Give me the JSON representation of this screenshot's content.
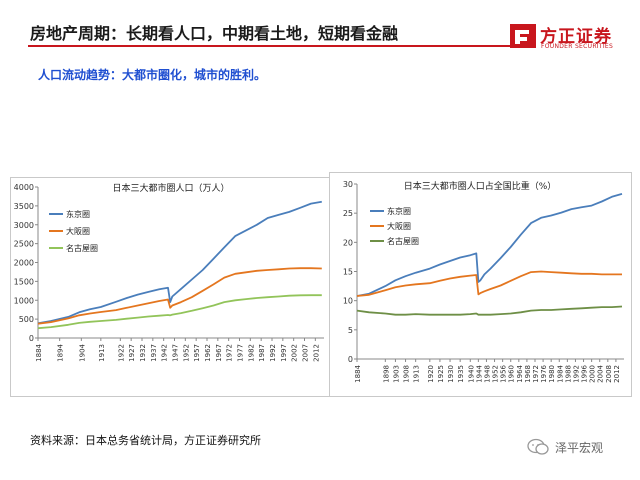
{
  "header": {
    "title": "房地产周期：长期看人口，中期看土地，短期看金融",
    "subtitle": "人口流动趋势：大都市圈化，城市的胜利。"
  },
  "logo": {
    "name_cn": "方正证券",
    "name_en": "FOUNDER SECURITIES",
    "color": "#c8161d"
  },
  "footer": {
    "source": "资料来源：日本总务省统计局，方正证券研究所",
    "wechat_name": "泽平宏观"
  },
  "chart_data": [
    {
      "type": "line",
      "title": "日本三大都市圈人口（万人）",
      "xlabel": "",
      "ylabel": "",
      "ylim": [
        0,
        4000
      ],
      "yticks": [
        0,
        500,
        1000,
        1500,
        2000,
        2500,
        3000,
        3500,
        4000
      ],
      "xlim": [
        1884,
        2016
      ],
      "xticks": [
        1884,
        1894,
        1904,
        1913,
        1922,
        1927,
        1932,
        1937,
        1942,
        1947,
        1952,
        1957,
        1962,
        1967,
        1972,
        1977,
        1982,
        1987,
        1992,
        1997,
        2002,
        2007,
        2012
      ],
      "grid": false,
      "legend": "top-left",
      "series": [
        {
          "name": "东京圈",
          "color": "#4a7ebb",
          "x": [
            1884,
            1890,
            1898,
            1903,
            1908,
            1913,
            1920,
            1925,
            1930,
            1935,
            1940,
            1944,
            1945,
            1946,
            1950,
            1955,
            1960,
            1965,
            1970,
            1975,
            1980,
            1985,
            1990,
            1995,
            2000,
            2005,
            2010,
            2015
          ],
          "y": [
            390,
            450,
            560,
            680,
            760,
            820,
            960,
            1060,
            1150,
            1220,
            1290,
            1330,
            950,
            1100,
            1300,
            1550,
            1800,
            2100,
            2400,
            2700,
            2850,
            3000,
            3180,
            3260,
            3340,
            3450,
            3560,
            3610
          ]
        },
        {
          "name": "大阪圈",
          "color": "#e4761f",
          "x": [
            1884,
            1890,
            1898,
            1903,
            1908,
            1913,
            1920,
            1925,
            1930,
            1935,
            1940,
            1944,
            1945,
            1946,
            1950,
            1955,
            1960,
            1965,
            1970,
            1975,
            1980,
            1985,
            1990,
            1995,
            2000,
            2005,
            2010,
            2015
          ],
          "y": [
            380,
            420,
            520,
            600,
            650,
            690,
            740,
            800,
            860,
            920,
            980,
            1020,
            800,
            860,
            950,
            1080,
            1250,
            1420,
            1600,
            1700,
            1740,
            1780,
            1800,
            1820,
            1840,
            1850,
            1850,
            1840
          ]
        },
        {
          "name": "名古屋圈",
          "color": "#92c45a",
          "x": [
            1884,
            1890,
            1898,
            1903,
            1908,
            1913,
            1920,
            1925,
            1930,
            1935,
            1940,
            1944,
            1945,
            1946,
            1950,
            1955,
            1960,
            1965,
            1970,
            1975,
            1980,
            1985,
            1990,
            1995,
            2000,
            2005,
            2010,
            2015
          ],
          "y": [
            260,
            290,
            350,
            400,
            430,
            450,
            480,
            510,
            540,
            570,
            590,
            610,
            600,
            620,
            660,
            720,
            790,
            860,
            950,
            1000,
            1030,
            1060,
            1080,
            1100,
            1120,
            1130,
            1135,
            1135
          ]
        }
      ]
    },
    {
      "type": "line",
      "title": "日本三大都市圈人口占全国比重（%）",
      "xlabel": "",
      "ylabel": "",
      "ylim": [
        0,
        30
      ],
      "yticks": [
        0,
        5,
        10,
        15,
        20,
        25,
        30
      ],
      "xlim": [
        1884,
        2016
      ],
      "xticks": [
        1884,
        1898,
        1903,
        1908,
        1913,
        1920,
        1925,
        1930,
        1935,
        1940,
        1944,
        1948,
        1952,
        1956,
        1960,
        1964,
        1968,
        1972,
        1976,
        1980,
        1984,
        1988,
        1992,
        1996,
        2000,
        2004,
        2008,
        2012
      ],
      "grid": false,
      "legend": "top-left",
      "series": [
        {
          "name": "东京圈",
          "color": "#4a7ebb",
          "x": [
            1884,
            1890,
            1898,
            1903,
            1908,
            1913,
            1920,
            1925,
            1930,
            1935,
            1940,
            1943,
            1944,
            1945,
            1947,
            1950,
            1955,
            1960,
            1965,
            1970,
            1975,
            1980,
            1985,
            1990,
            1995,
            2000,
            2005,
            2010,
            2015
          ],
          "y": [
            10.8,
            11.2,
            12.5,
            13.5,
            14.2,
            14.8,
            15.5,
            16.2,
            16.8,
            17.4,
            17.8,
            18.1,
            13.2,
            13.5,
            14.5,
            15.5,
            17.3,
            19.2,
            21.3,
            23.3,
            24.2,
            24.6,
            25.1,
            25.7,
            26.0,
            26.3,
            27.0,
            27.8,
            28.3
          ]
        },
        {
          "name": "大阪圈",
          "color": "#e4761f",
          "x": [
            1884,
            1890,
            1898,
            1903,
            1908,
            1913,
            1920,
            1925,
            1930,
            1935,
            1940,
            1943,
            1944,
            1945,
            1947,
            1950,
            1955,
            1960,
            1965,
            1970,
            1975,
            1980,
            1985,
            1990,
            1995,
            2000,
            2005,
            2010,
            2015
          ],
          "y": [
            10.8,
            11.0,
            11.8,
            12.3,
            12.6,
            12.8,
            13.0,
            13.4,
            13.8,
            14.1,
            14.3,
            14.4,
            11.1,
            11.3,
            11.6,
            12.0,
            12.6,
            13.4,
            14.2,
            14.9,
            15.0,
            14.9,
            14.8,
            14.7,
            14.6,
            14.6,
            14.5,
            14.5,
            14.5
          ]
        },
        {
          "name": "名古屋圈",
          "color": "#6e8f46",
          "x": [
            1884,
            1890,
            1898,
            1903,
            1908,
            1913,
            1920,
            1925,
            1930,
            1935,
            1940,
            1943,
            1944,
            1945,
            1947,
            1950,
            1955,
            1960,
            1965,
            1970,
            1975,
            1980,
            1985,
            1990,
            1995,
            2000,
            2005,
            2010,
            2015
          ],
          "y": [
            8.3,
            8.0,
            7.8,
            7.6,
            7.6,
            7.7,
            7.6,
            7.6,
            7.6,
            7.6,
            7.7,
            7.8,
            7.6,
            7.6,
            7.6,
            7.6,
            7.7,
            7.8,
            8.0,
            8.3,
            8.4,
            8.4,
            8.5,
            8.6,
            8.7,
            8.8,
            8.9,
            8.9,
            9.0
          ]
        }
      ]
    }
  ]
}
